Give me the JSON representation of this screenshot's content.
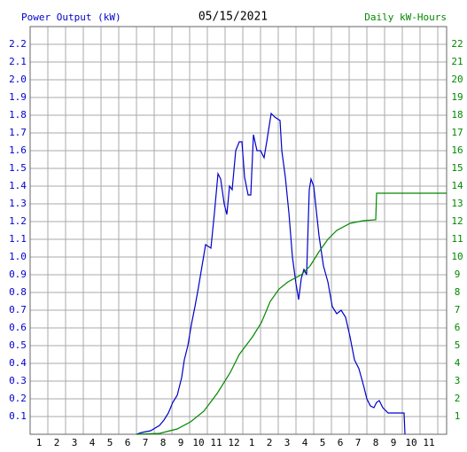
{
  "chart_data": {
    "type": "line",
    "title": "05/15/2021",
    "y_label": "Power Output (kW)",
    "y2_label": "Daily kW-Hours",
    "xlim": [
      0.5,
      24
    ],
    "xticks": [
      1,
      2,
      3,
      4,
      5,
      6,
      7,
      8,
      9,
      10,
      11,
      12,
      {
        "value": 13,
        "label": "1"
      },
      {
        "value": 14,
        "label": "2"
      },
      {
        "value": 15,
        "label": "3"
      },
      {
        "value": 16,
        "label": "4"
      },
      {
        "value": 17,
        "label": "5"
      },
      {
        "value": 18,
        "label": "6"
      },
      {
        "value": 19,
        "label": "7"
      },
      {
        "value": 20,
        "label": "8"
      },
      {
        "value": 21,
        "label": "9"
      },
      {
        "value": 22,
        "label": "10"
      },
      {
        "value": 23,
        "label": "11"
      }
    ],
    "ylim": [
      0,
      2.3
    ],
    "yticks": [
      0.1,
      0.2,
      0.3,
      0.4,
      0.5,
      0.6,
      0.7,
      0.8,
      0.9,
      {
        "value": 1,
        "label": "1.0"
      },
      1.1,
      1.2,
      1.3,
      1.4,
      1.5,
      1.6,
      1.7,
      1.8,
      1.9,
      {
        "value": 2,
        "label": "2.0"
      },
      2.1,
      2.2
    ],
    "y2lim": [
      0,
      23
    ],
    "y2ticks": [
      1,
      2,
      3,
      4,
      5,
      6,
      7,
      8,
      9,
      10,
      11,
      12,
      13,
      14,
      15,
      16,
      17,
      18,
      19,
      20,
      21,
      22
    ],
    "grid": true,
    "series": [
      {
        "color": "#0000cc",
        "x": [
          6.5,
          6.8,
          7.3,
          7.8,
          8.05,
          8.3,
          8.55,
          8.8,
          9.05,
          9.2,
          9.4,
          9.6,
          9.8,
          10,
          10.2,
          10.4,
          10.7,
          10.9,
          11.1,
          11.25,
          11.45,
          11.6,
          11.75,
          11.9,
          12.1,
          12.3,
          12.45,
          12.6,
          12.8,
          12.95,
          13.1,
          13.3,
          13.5,
          13.7,
          13.85,
          14.1,
          14.3,
          14.6,
          14.7,
          14.9,
          15.1,
          15.3,
          15.5,
          15.65,
          15.8,
          15.95,
          16.1,
          16.25,
          16.35,
          16.5,
          16.65,
          16.8,
          17.05,
          17.3,
          17.55,
          17.8,
          18.05,
          18.3,
          18.55,
          18.8,
          19.05,
          19.3,
          19.5,
          19.7,
          19.9,
          20.05,
          20.2,
          20.4,
          20.7,
          21.6,
          21.65
        ],
        "values": [
          0,
          0.01,
          0.02,
          0.05,
          0.08,
          0.12,
          0.18,
          0.22,
          0.32,
          0.42,
          0.5,
          0.62,
          0.72,
          0.83,
          0.95,
          1.07,
          1.05,
          1.25,
          1.47,
          1.44,
          1.3,
          1.24,
          1.4,
          1.38,
          1.6,
          1.65,
          1.65,
          1.45,
          1.35,
          1.35,
          1.69,
          1.6,
          1.6,
          1.56,
          1.65,
          1.81,
          1.79,
          1.77,
          1.6,
          1.45,
          1.25,
          1.0,
          0.85,
          0.76,
          0.88,
          0.93,
          0.9,
          1.38,
          1.44,
          1.4,
          1.26,
          1.12,
          0.95,
          0.86,
          0.72,
          0.68,
          0.7,
          0.66,
          0.55,
          0.42,
          0.37,
          0.28,
          0.2,
          0.16,
          0.15,
          0.18,
          0.19,
          0.15,
          0.12,
          0.12,
          0
        ]
      },
      {
        "color": "#008800",
        "axis": "y2",
        "x": [
          6.5,
          7.8,
          8.8,
          9.55,
          10.3,
          11.05,
          11.8,
          12.3,
          13.05,
          13.55,
          14.05,
          14.55,
          15.05,
          15.8,
          16.3,
          16.8,
          17.3,
          17.8,
          18.55,
          19.3,
          20,
          20.05,
          24
        ],
        "values": [
          0,
          0.05,
          0.3,
          0.7,
          1.3,
          2.3,
          3.5,
          4.5,
          5.5,
          6.3,
          7.5,
          8.2,
          8.6,
          9.0,
          9.5,
          10.3,
          11.0,
          11.5,
          11.9,
          12.05,
          12.1,
          13.6,
          13.6
        ]
      }
    ]
  }
}
